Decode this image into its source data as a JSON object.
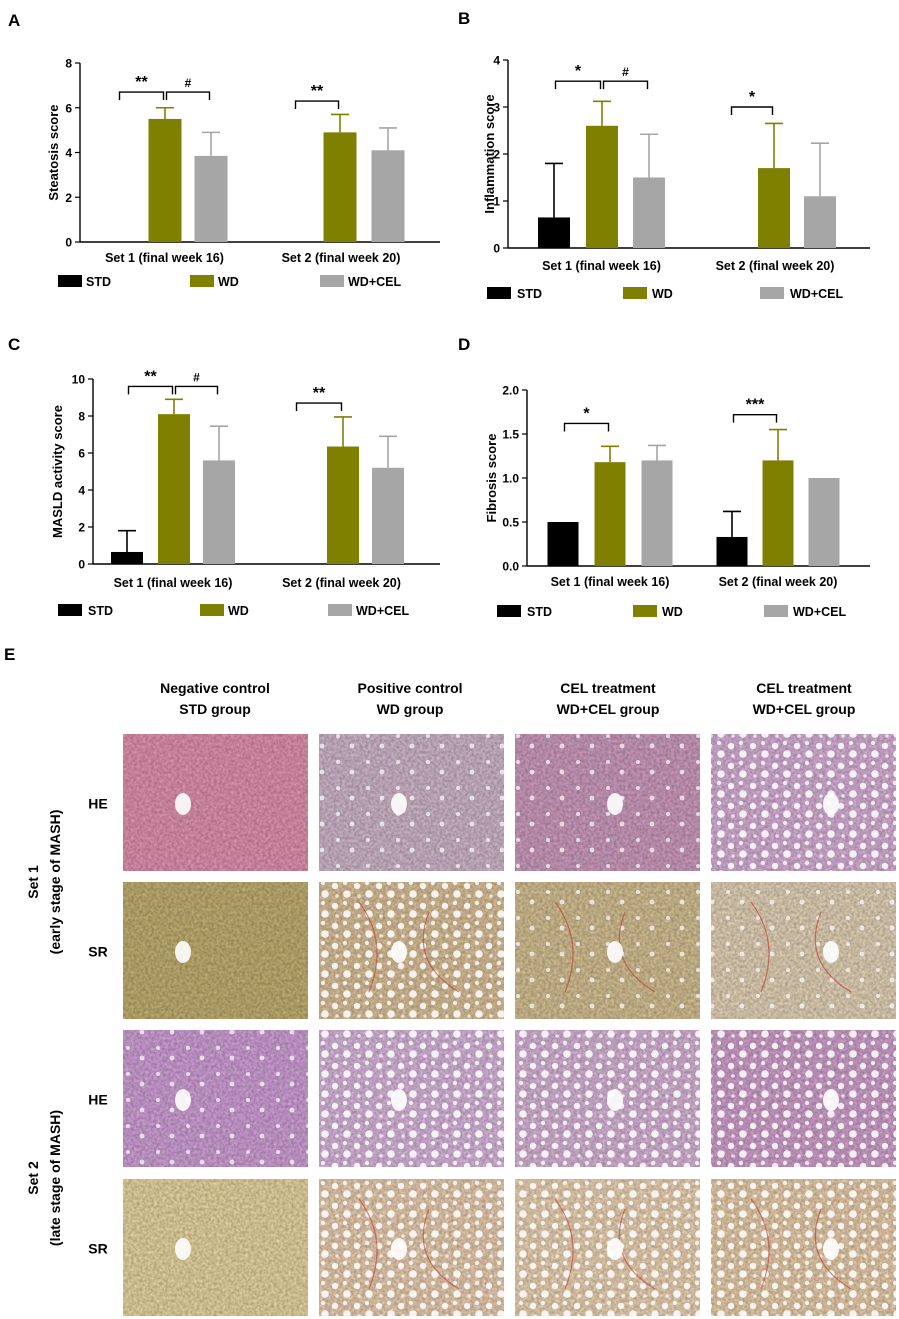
{
  "colors": {
    "STD": "#000000",
    "WD": "#808000",
    "WD+CEL": "#a6a6a6"
  },
  "legend": [
    "STD",
    "WD",
    "WD+CEL"
  ],
  "chart_data": [
    {
      "panel": "A",
      "type": "bar",
      "ylabel": "Steatosis score",
      "ylim": [
        0,
        8
      ],
      "yticks": [
        "0",
        "2",
        "4",
        "6",
        "8"
      ],
      "yvals": [
        0,
        2,
        4,
        6,
        8
      ],
      "categories": [
        "Set 1 (final week 16)",
        "Set 2 (final week 20)"
      ],
      "series": [
        {
          "name": "STD",
          "values": [
            0,
            0
          ],
          "errors": [
            0,
            0
          ]
        },
        {
          "name": "WD",
          "values": [
            5.5,
            4.9
          ],
          "errors": [
            0.5,
            0.8
          ]
        },
        {
          "name": "WD+CEL",
          "values": [
            3.85,
            4.1
          ],
          "errors": [
            1.05,
            1.0
          ]
        }
      ],
      "annotations": [
        {
          "group": 0,
          "from": 0,
          "to": 1,
          "text": "**",
          "level": 6.7
        },
        {
          "group": 0,
          "from": 1,
          "to": 2,
          "text": "#",
          "level": 6.7
        },
        {
          "group": 1,
          "from": 0,
          "to": 1,
          "text": "**",
          "level": 6.3
        }
      ]
    },
    {
      "panel": "B",
      "type": "bar",
      "ylabel": "Inflammation score",
      "ylim": [
        0,
        4
      ],
      "yticks": [
        "0",
        "1",
        "2",
        "3",
        "4"
      ],
      "yvals": [
        0,
        1,
        2,
        3,
        4
      ],
      "categories": [
        "Set 1 (final week 16)",
        "Set 2 (final week 20)"
      ],
      "series": [
        {
          "name": "STD",
          "values": [
            0.65,
            0
          ],
          "errors": [
            1.15,
            0
          ]
        },
        {
          "name": "WD",
          "values": [
            2.6,
            1.7
          ],
          "errors": [
            0.52,
            0.95
          ]
        },
        {
          "name": "WD+CEL",
          "values": [
            1.5,
            1.1
          ],
          "errors": [
            0.92,
            1.13
          ]
        }
      ],
      "annotations": [
        {
          "group": 0,
          "from": 0,
          "to": 1,
          "text": "*",
          "level": 3.55
        },
        {
          "group": 0,
          "from": 1,
          "to": 2,
          "text": "#",
          "level": 3.55
        },
        {
          "group": 1,
          "from": 0,
          "to": 1,
          "text": "*",
          "level": 3.0
        }
      ]
    },
    {
      "panel": "C",
      "type": "bar",
      "ylabel": "MASLD activity score",
      "ylim": [
        0,
        10
      ],
      "yticks": [
        "0",
        "2",
        "4",
        "6",
        "8",
        "10"
      ],
      "yvals": [
        0,
        2,
        4,
        6,
        8,
        10
      ],
      "categories": [
        "Set 1 (final week 16)",
        "Set 2 (final week 20)"
      ],
      "series": [
        {
          "name": "STD",
          "values": [
            0.65,
            0
          ],
          "errors": [
            1.15,
            0
          ]
        },
        {
          "name": "WD",
          "values": [
            8.1,
            6.35
          ],
          "errors": [
            0.8,
            1.6
          ]
        },
        {
          "name": "WD+CEL",
          "values": [
            5.6,
            5.2
          ],
          "errors": [
            1.85,
            1.7
          ]
        }
      ],
      "annotations": [
        {
          "group": 0,
          "from": 0,
          "to": 1,
          "text": "**",
          "level": 9.6
        },
        {
          "group": 0,
          "from": 1,
          "to": 2,
          "text": "#",
          "level": 9.6
        },
        {
          "group": 1,
          "from": 0,
          "to": 1,
          "text": "**",
          "level": 8.7
        }
      ]
    },
    {
      "panel": "D",
      "type": "bar",
      "ylabel": "Fibrosis score",
      "ylim": [
        0,
        2.0
      ],
      "yticks": [
        "0.0",
        "0.5",
        "1.0",
        "1.5",
        "2.0"
      ],
      "yvals": [
        0,
        0.5,
        1,
        1.5,
        2
      ],
      "categories": [
        "Set 1 (final week 16)",
        "Set 2 (final week 20)"
      ],
      "series": [
        {
          "name": "STD",
          "values": [
            0.5,
            0.33
          ],
          "errors": [
            0,
            0.29
          ]
        },
        {
          "name": "WD",
          "values": [
            1.18,
            1.2
          ],
          "errors": [
            0.18,
            0.35
          ]
        },
        {
          "name": "WD+CEL",
          "values": [
            1.2,
            1.0
          ],
          "errors": [
            0.17,
            0
          ]
        }
      ],
      "annotations": [
        {
          "group": 0,
          "from": 0,
          "to": 1,
          "text": "*",
          "level": 1.62
        },
        {
          "group": 1,
          "from": 0,
          "to": 1,
          "text": "***",
          "level": 1.72
        }
      ]
    }
  ],
  "panel_e": {
    "label": "E",
    "columns": [
      {
        "line1": "Negative control",
        "line2": "STD group"
      },
      {
        "line1": "Positive control",
        "line2": "WD group"
      },
      {
        "line1": "CEL treatment",
        "line2": "WD+CEL group"
      },
      {
        "line1": "CEL treatment",
        "line2": "WD+CEL group"
      }
    ],
    "sets": [
      {
        "line1": "Set 1",
        "line2": "(early stage of MASH)"
      },
      {
        "line1": "Set 2",
        "line2": "(late stage of MASH)"
      }
    ],
    "stains": [
      "HE",
      "SR",
      "HE",
      "SR"
    ],
    "rows": [
      {
        "set": 0,
        "stain": "HE",
        "tone": [
          "#ec9ab8",
          "#d9bfd3",
          "#d6a3c7",
          "#e0b8e0"
        ]
      },
      {
        "set": 0,
        "stain": "SR",
        "tone": [
          "#cbb877",
          "#e4c9a0",
          "#dec99a",
          "#eedcc0"
        ]
      },
      {
        "set": 1,
        "stain": "HE",
        "tone": [
          "#d9a8e0",
          "#e2bfe6",
          "#e0bde0",
          "#d9a8d5"
        ]
      },
      {
        "set": 1,
        "stain": "SR",
        "tone": [
          "#f2e0a8",
          "#f3d6b8",
          "#f5dcbc",
          "#f2d6b2"
        ]
      }
    ]
  }
}
